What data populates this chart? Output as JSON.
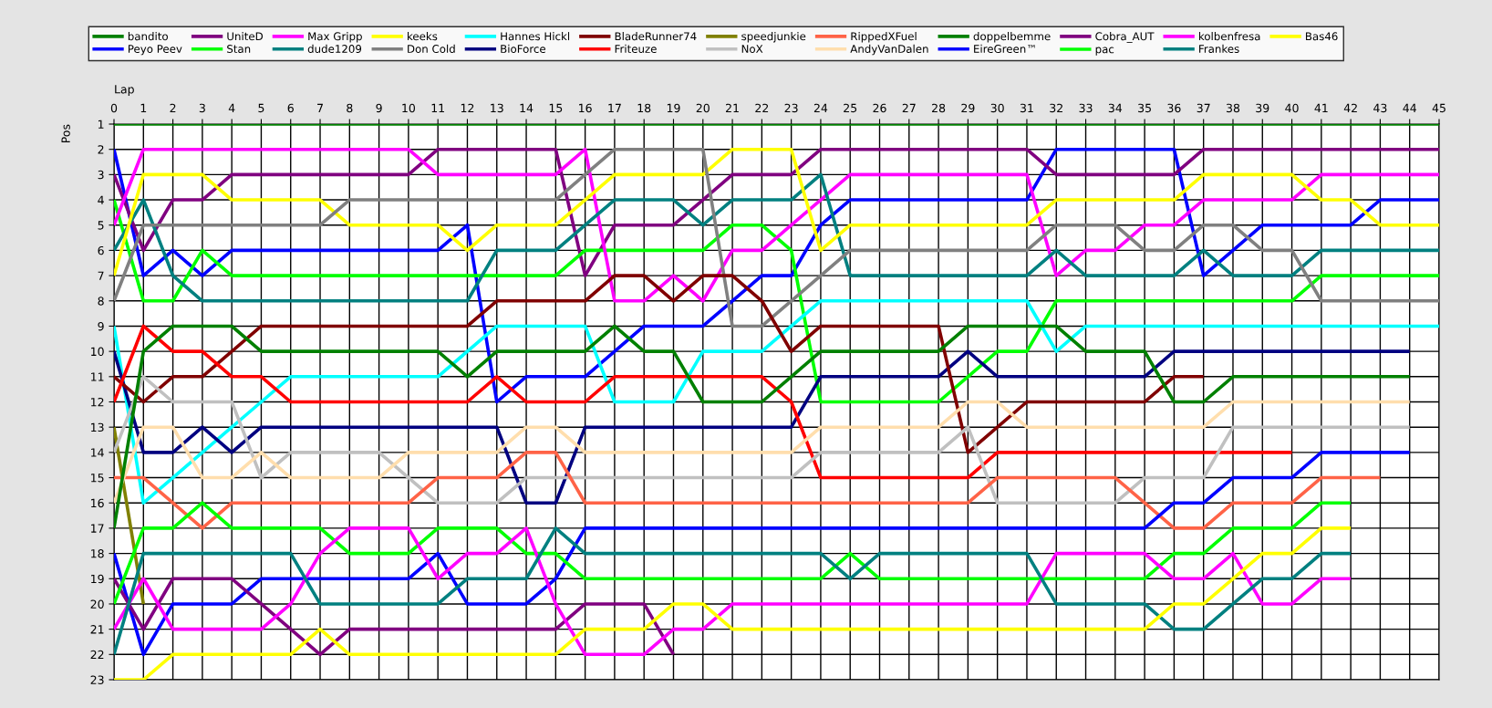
{
  "chart_data": {
    "type": "line",
    "xlabel": "Lap",
    "ylabel": "Pos",
    "x": [
      0,
      1,
      2,
      3,
      4,
      5,
      6,
      7,
      8,
      9,
      10,
      11,
      12,
      13,
      14,
      15,
      16,
      17,
      18,
      19,
      20,
      21,
      22,
      23,
      24,
      25,
      26,
      27,
      28,
      29,
      30,
      31,
      32,
      33,
      34,
      35,
      36,
      37,
      38,
      39,
      40,
      41,
      42,
      43,
      44,
      45
    ],
    "xlim": [
      0,
      45
    ],
    "xticks": [
      0,
      1,
      2,
      3,
      4,
      5,
      6,
      7,
      8,
      9,
      10,
      11,
      12,
      13,
      14,
      15,
      16,
      17,
      18,
      19,
      20,
      21,
      22,
      23,
      24,
      25,
      26,
      27,
      28,
      29,
      30,
      31,
      32,
      33,
      34,
      35,
      36,
      37,
      38,
      39,
      40,
      41,
      42,
      43,
      44,
      45
    ],
    "ylim": [
      23,
      1
    ],
    "yticks": [
      1,
      2,
      3,
      4,
      5,
      6,
      7,
      8,
      9,
      10,
      11,
      12,
      13,
      14,
      15,
      16,
      17,
      18,
      19,
      20,
      21,
      22,
      23
    ],
    "grid": true,
    "legend": "top",
    "marker": "none",
    "line_style": "solid",
    "series": [
      {
        "name": "bandito",
        "color": "#008000",
        "values": [
          1,
          1,
          1,
          1,
          1,
          1,
          1,
          1,
          1,
          1,
          1,
          1,
          1,
          1,
          1,
          1,
          1,
          1,
          1,
          1,
          1,
          1,
          1,
          1,
          1,
          1,
          1,
          1,
          1,
          1,
          1,
          1,
          1,
          1,
          1,
          1,
          1,
          1,
          1,
          1,
          1,
          1,
          1,
          1,
          1,
          1
        ]
      },
      {
        "name": "Peyo Peev",
        "color": "#0000ff",
        "values": [
          2,
          7,
          6,
          7,
          6,
          6,
          6,
          6,
          6,
          6,
          6,
          6,
          5,
          12,
          11,
          11,
          11,
          10,
          9,
          9,
          9,
          8,
          7,
          7,
          5,
          4,
          4,
          4,
          4,
          4,
          4,
          4,
          2,
          2,
          2,
          2,
          2,
          7,
          6,
          5,
          5,
          5,
          5,
          4,
          4,
          4
        ]
      },
      {
        "name": "UniteD",
        "color": "#800080",
        "values": [
          3,
          6,
          4,
          4,
          3,
          3,
          3,
          3,
          3,
          3,
          3,
          2,
          2,
          2,
          2,
          2,
          7,
          5,
          5,
          5,
          4,
          3,
          3,
          3,
          2,
          2,
          2,
          2,
          2,
          2,
          2,
          2,
          3,
          3,
          3,
          3,
          3,
          2,
          2,
          2,
          2,
          2,
          2,
          2,
          2,
          2
        ]
      },
      {
        "name": "Stan",
        "color": "#00ff00",
        "values": [
          4,
          8,
          8,
          6,
          7,
          7,
          7,
          7,
          7,
          7,
          7,
          7,
          7,
          7,
          7,
          7,
          6,
          6,
          6,
          6,
          6,
          5,
          5,
          6,
          12,
          12,
          12,
          12,
          12,
          11,
          10,
          10,
          8,
          8,
          8,
          8,
          8,
          8,
          8,
          8,
          8,
          7,
          7,
          7,
          7,
          7
        ]
      },
      {
        "name": "Max Gripp",
        "color": "#ff00ff",
        "values": [
          5,
          2,
          2,
          2,
          2,
          2,
          2,
          2,
          2,
          2,
          2,
          3,
          3,
          3,
          3,
          3,
          2,
          8,
          8,
          7,
          8,
          6,
          6,
          5,
          4,
          3,
          3,
          3,
          3,
          3,
          3,
          3,
          7,
          6,
          6,
          5,
          5,
          4,
          4,
          4,
          4,
          3,
          3,
          3,
          3,
          3
        ]
      },
      {
        "name": "dude1209",
        "color": "#008080",
        "values": [
          6,
          4,
          7,
          8,
          8,
          8,
          8,
          8,
          8,
          8,
          8,
          8,
          8,
          6,
          6,
          6,
          5,
          4,
          4,
          4,
          5,
          4,
          4,
          4,
          3,
          7,
          7,
          7,
          7,
          7,
          7,
          7,
          6,
          7,
          7,
          7,
          7,
          6,
          7,
          7,
          7,
          6,
          6,
          6,
          6,
          6
        ]
      },
      {
        "name": "keeks",
        "color": "#ffff00",
        "values": [
          7,
          3,
          3,
          3,
          4,
          4,
          4,
          4,
          5,
          5,
          5,
          5,
          6,
          5,
          5,
          5,
          4,
          3,
          3,
          3,
          3,
          2,
          2,
          2,
          6,
          5,
          5,
          5,
          5,
          5,
          5,
          5,
          4,
          4,
          4,
          4,
          4,
          3,
          3,
          3,
          3,
          4,
          4,
          5,
          5,
          5
        ]
      },
      {
        "name": "Don Cold",
        "color": "#808080",
        "values": [
          8,
          5,
          5,
          5,
          5,
          5,
          5,
          5,
          4,
          4,
          4,
          4,
          4,
          4,
          4,
          4,
          3,
          2,
          2,
          2,
          2,
          9,
          9,
          8,
          7,
          6,
          6,
          6,
          6,
          6,
          6,
          6,
          5,
          5,
          5,
          6,
          6,
          5,
          5,
          6,
          6,
          8,
          8,
          8,
          8,
          8
        ]
      },
      {
        "name": "Hannes Hickl",
        "color": "#00ffff",
        "values": [
          9,
          16,
          15,
          14,
          13,
          12,
          11,
          11,
          11,
          11,
          11,
          11,
          10,
          9,
          9,
          9,
          9,
          12,
          12,
          12,
          10,
          10,
          10,
          9,
          8,
          8,
          8,
          8,
          8,
          8,
          8,
          8,
          10,
          9,
          9,
          9,
          9,
          9,
          9,
          9,
          9,
          9,
          9,
          9,
          9,
          9
        ]
      },
      {
        "name": "BioForce",
        "color": "#000080",
        "values": [
          10,
          14,
          14,
          13,
          14,
          13,
          13,
          13,
          13,
          13,
          13,
          13,
          13,
          13,
          16,
          16,
          13,
          13,
          13,
          13,
          13,
          13,
          13,
          13,
          11,
          11,
          11,
          11,
          11,
          10,
          11,
          11,
          11,
          11,
          11,
          11,
          10,
          10,
          10,
          10,
          10,
          10,
          10,
          10,
          10,
          null
        ]
      },
      {
        "name": "BladeRunner74",
        "color": "#800000",
        "values": [
          11,
          12,
          11,
          11,
          10,
          9,
          9,
          9,
          9,
          9,
          9,
          9,
          9,
          8,
          8,
          8,
          8,
          7,
          7,
          8,
          7,
          7,
          8,
          10,
          9,
          9,
          9,
          9,
          9,
          14,
          13,
          12,
          12,
          12,
          12,
          12,
          11,
          11,
          null,
          null,
          null,
          null,
          null,
          null,
          null,
          null
        ]
      },
      {
        "name": "Friteuze",
        "color": "#ff0000",
        "values": [
          12,
          9,
          10,
          10,
          11,
          11,
          12,
          12,
          12,
          12,
          12,
          12,
          12,
          11,
          12,
          12,
          12,
          11,
          11,
          11,
          11,
          11,
          11,
          12,
          15,
          15,
          15,
          15,
          15,
          15,
          14,
          14,
          14,
          14,
          14,
          14,
          14,
          14,
          14,
          14,
          14,
          null,
          null,
          null,
          null,
          null
        ]
      },
      {
        "name": "speedjunkie",
        "color": "#808000",
        "values": [
          13,
          20,
          null,
          null,
          null,
          null,
          null,
          null,
          null,
          null,
          null,
          null,
          null,
          null,
          null,
          null,
          null,
          null,
          null,
          null,
          null,
          null,
          null,
          null,
          null,
          null,
          null,
          null,
          null,
          null,
          null,
          null,
          null,
          null,
          null,
          null,
          null,
          null,
          null,
          null,
          null,
          null,
          null,
          null,
          null,
          null
        ]
      },
      {
        "name": "NoX",
        "color": "#c0c0c0",
        "values": [
          14,
          11,
          12,
          12,
          12,
          15,
          14,
          14,
          14,
          14,
          15,
          16,
          16,
          16,
          15,
          15,
          15,
          15,
          15,
          15,
          15,
          15,
          15,
          15,
          14,
          14,
          14,
          14,
          14,
          13,
          16,
          16,
          16,
          16,
          16,
          15,
          15,
          15,
          13,
          13,
          13,
          13,
          13,
          13,
          13,
          null
        ]
      },
      {
        "name": "RippedXFuel",
        "color": "#ff6347",
        "values": [
          15,
          15,
          16,
          17,
          16,
          16,
          16,
          16,
          16,
          16,
          16,
          15,
          15,
          15,
          14,
          14,
          16,
          16,
          16,
          16,
          16,
          16,
          16,
          16,
          16,
          16,
          16,
          16,
          16,
          16,
          15,
          15,
          15,
          15,
          15,
          16,
          17,
          17,
          16,
          16,
          16,
          15,
          15,
          15,
          null,
          null
        ]
      },
      {
        "name": "AndyVanDalen",
        "color": "#ffdead",
        "values": [
          16,
          13,
          13,
          15,
          15,
          14,
          15,
          15,
          15,
          15,
          14,
          14,
          14,
          14,
          13,
          13,
          14,
          14,
          14,
          14,
          14,
          14,
          14,
          14,
          13,
          13,
          13,
          13,
          13,
          12,
          12,
          13,
          13,
          13,
          13,
          13,
          13,
          13,
          12,
          12,
          12,
          12,
          12,
          12,
          12,
          null
        ]
      },
      {
        "name": "doppelbemme",
        "color": "#008000",
        "values": [
          17,
          10,
          9,
          9,
          9,
          10,
          10,
          10,
          10,
          10,
          10,
          10,
          11,
          10,
          10,
          10,
          10,
          9,
          10,
          10,
          12,
          12,
          12,
          11,
          10,
          10,
          10,
          10,
          10,
          9,
          9,
          9,
          9,
          10,
          10,
          10,
          12,
          12,
          11,
          11,
          11,
          11,
          11,
          11,
          11,
          null
        ]
      },
      {
        "name": "EireGreen™",
        "color": "#0000ff",
        "values": [
          18,
          22,
          20,
          20,
          20,
          19,
          19,
          19,
          19,
          19,
          19,
          18,
          20,
          20,
          20,
          19,
          17,
          17,
          17,
          17,
          17,
          17,
          17,
          17,
          17,
          17,
          17,
          17,
          17,
          17,
          17,
          17,
          17,
          17,
          17,
          17,
          16,
          16,
          15,
          15,
          15,
          14,
          14,
          14,
          14,
          null
        ]
      },
      {
        "name": "Cobra_AUT",
        "color": "#800080",
        "values": [
          19,
          21,
          19,
          19,
          19,
          20,
          21,
          22,
          21,
          21,
          21,
          21,
          21,
          21,
          21,
          21,
          20,
          20,
          20,
          22,
          null,
          null,
          null,
          null,
          null,
          null,
          null,
          null,
          null,
          null,
          null,
          null,
          null,
          null,
          null,
          null,
          null,
          null,
          null,
          null,
          null,
          null,
          null,
          null,
          null,
          null
        ]
      },
      {
        "name": "pac",
        "color": "#00ff00",
        "values": [
          20,
          17,
          17,
          16,
          17,
          17,
          17,
          17,
          18,
          18,
          18,
          17,
          17,
          17,
          18,
          18,
          19,
          19,
          19,
          19,
          19,
          19,
          19,
          19,
          19,
          18,
          19,
          19,
          19,
          19,
          19,
          19,
          19,
          19,
          19,
          19,
          18,
          18,
          17,
          17,
          17,
          16,
          16,
          null,
          null,
          null
        ]
      },
      {
        "name": "kolbenfresa",
        "color": "#ff00ff",
        "values": [
          21,
          19,
          21,
          21,
          21,
          21,
          20,
          18,
          17,
          17,
          17,
          19,
          18,
          18,
          17,
          20,
          22,
          22,
          22,
          21,
          21,
          20,
          20,
          20,
          20,
          20,
          20,
          20,
          20,
          20,
          20,
          20,
          18,
          18,
          18,
          18,
          19,
          19,
          18,
          20,
          20,
          19,
          19,
          null,
          null,
          null
        ]
      },
      {
        "name": "Frankes",
        "color": "#008080",
        "values": [
          22,
          18,
          18,
          18,
          18,
          18,
          18,
          20,
          20,
          20,
          20,
          20,
          19,
          19,
          19,
          17,
          18,
          18,
          18,
          18,
          18,
          18,
          18,
          18,
          18,
          19,
          18,
          18,
          18,
          18,
          18,
          18,
          20,
          20,
          20,
          20,
          21,
          21,
          20,
          19,
          19,
          18,
          18,
          null,
          null,
          null
        ]
      },
      {
        "name": "Bas46",
        "color": "#ffff00",
        "values": [
          23,
          23,
          22,
          22,
          22,
          22,
          22,
          21,
          22,
          22,
          22,
          22,
          22,
          22,
          22,
          22,
          21,
          21,
          21,
          20,
          20,
          21,
          21,
          21,
          21,
          21,
          21,
          21,
          21,
          21,
          21,
          21,
          21,
          21,
          21,
          21,
          20,
          20,
          19,
          18,
          18,
          17,
          17,
          null,
          null,
          null
        ]
      }
    ]
  }
}
